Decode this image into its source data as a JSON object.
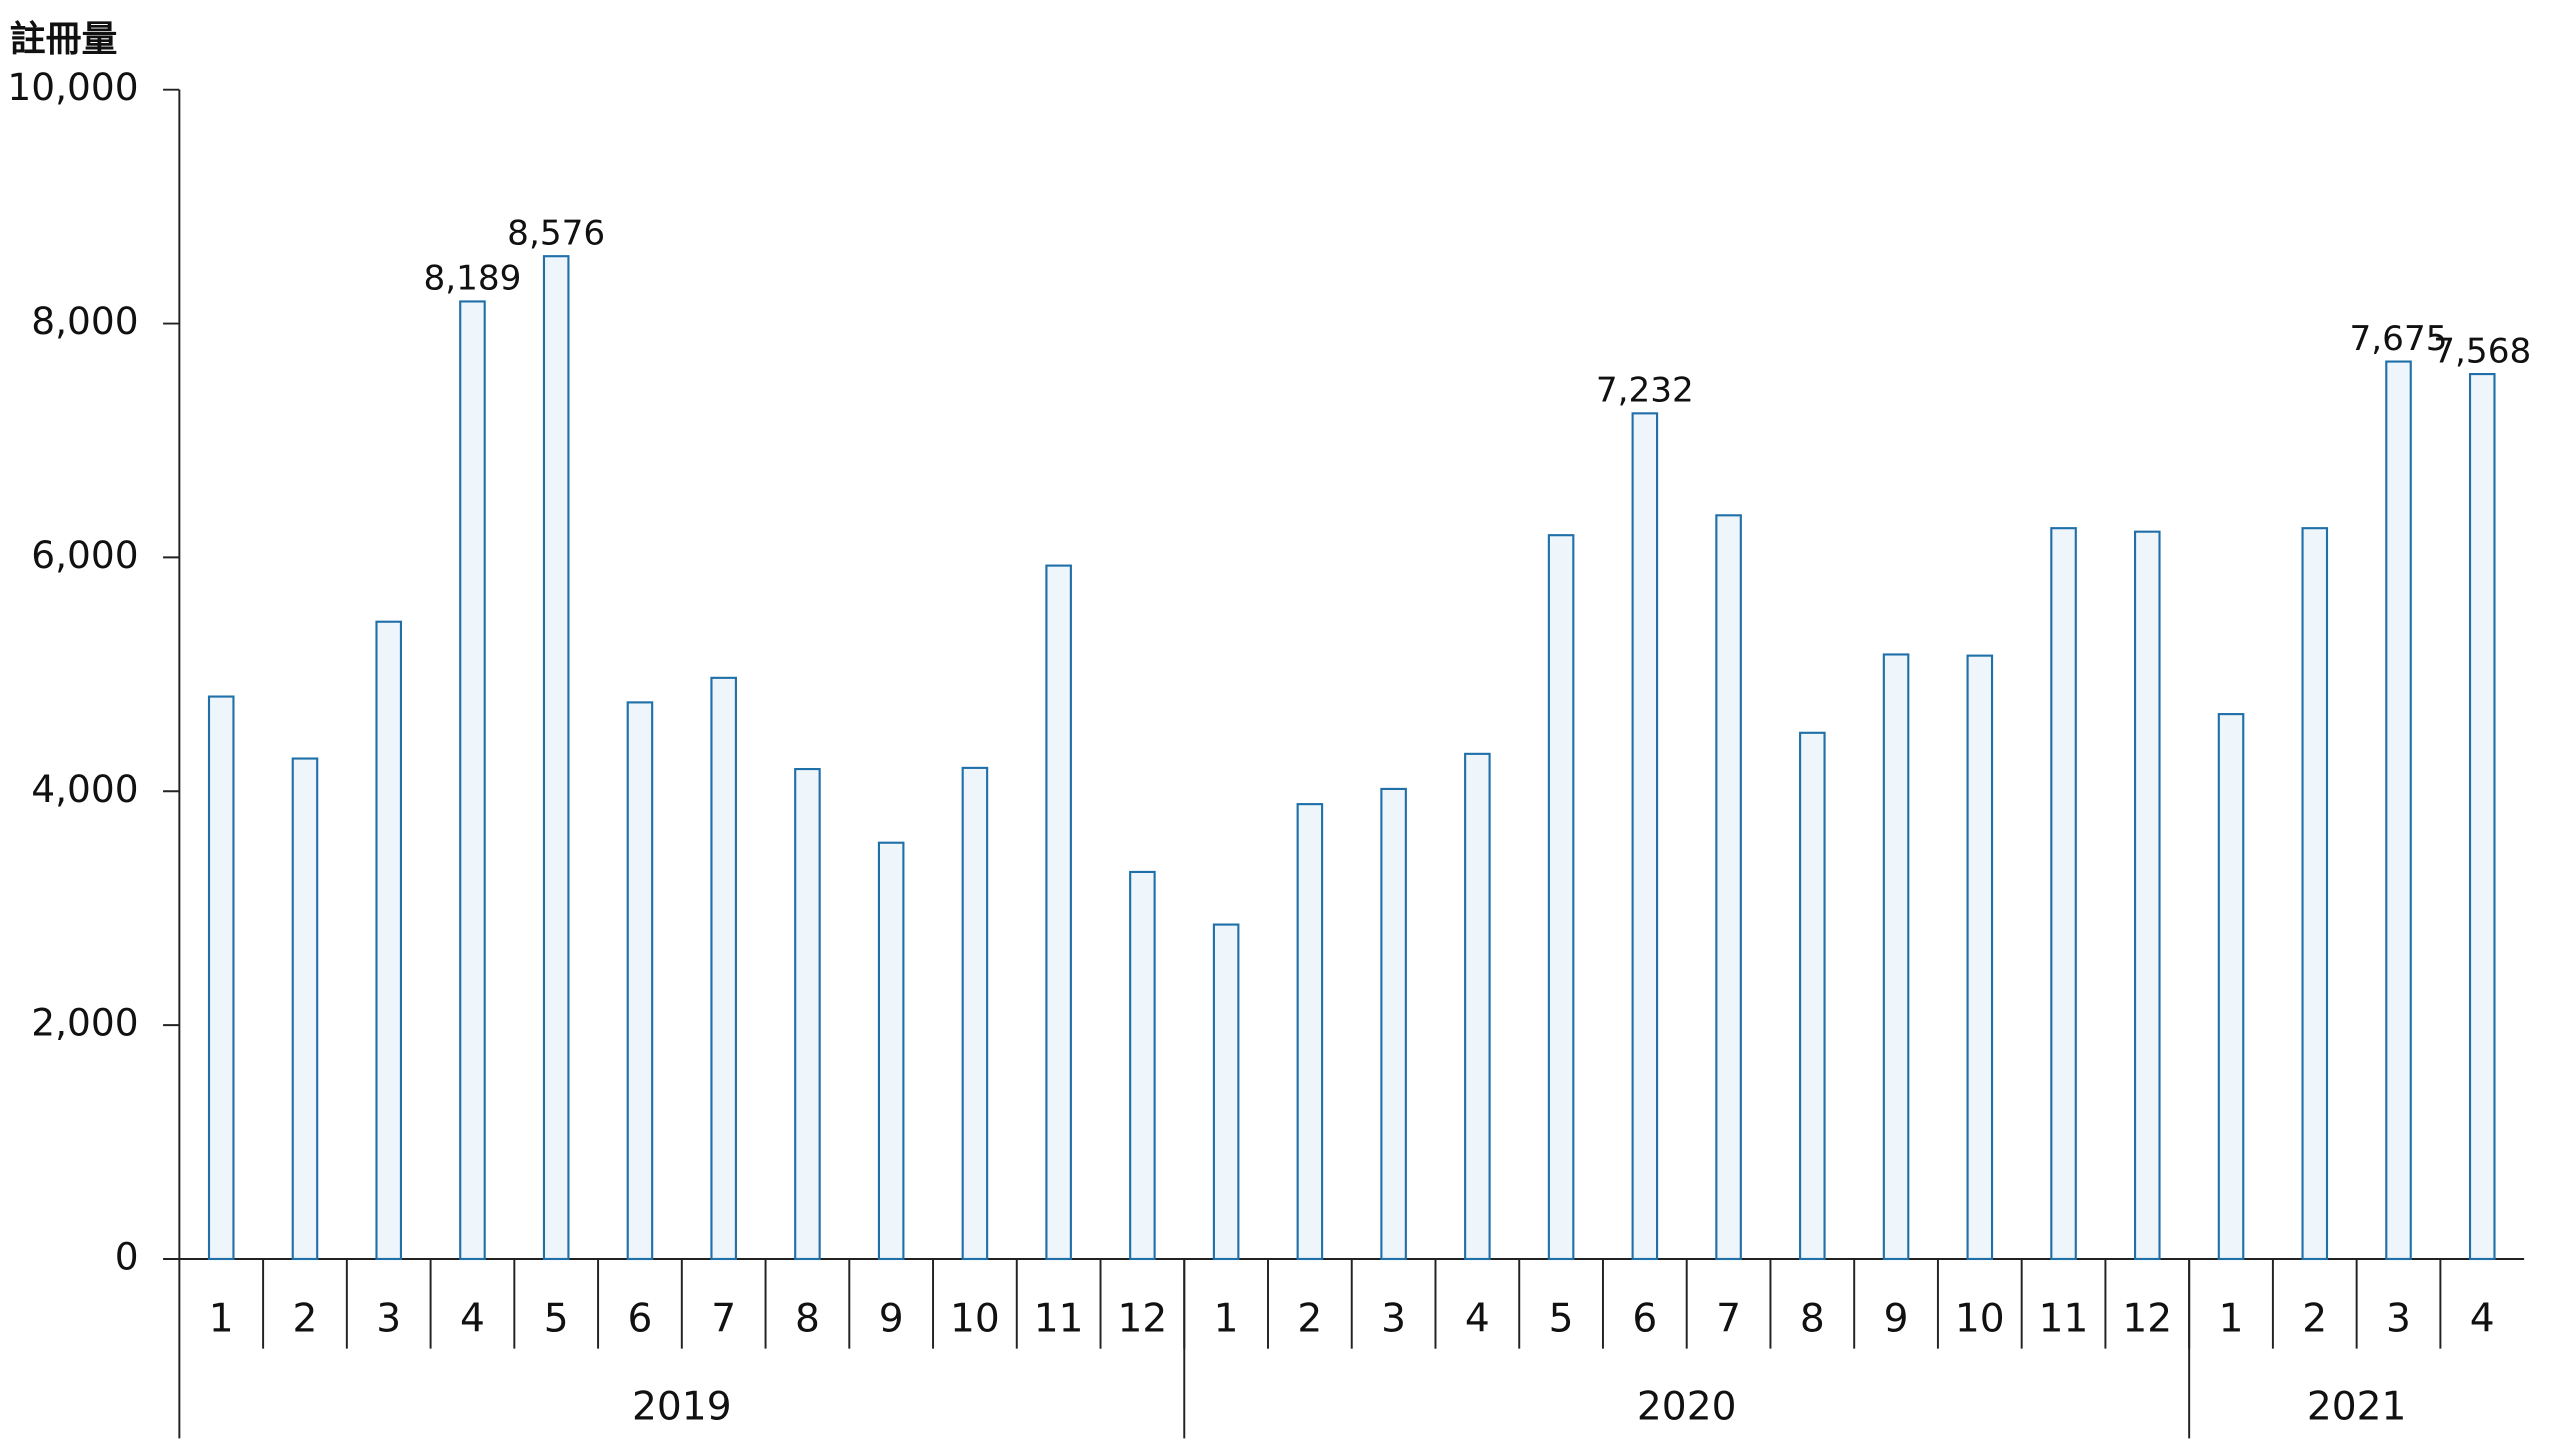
{
  "chart_data": {
    "type": "bar",
    "y_axis_label": "註冊量",
    "groups": [
      {
        "name": "2019",
        "categories": [
          "1",
          "2",
          "3",
          "4",
          "5",
          "6",
          "7",
          "8",
          "9",
          "10",
          "11",
          "12"
        ]
      },
      {
        "name": "2020",
        "categories": [
          "1",
          "2",
          "3",
          "4",
          "5",
          "6",
          "7",
          "8",
          "9",
          "10",
          "11",
          "12"
        ]
      },
      {
        "name": "2021",
        "categories": [
          "1",
          "2",
          "3",
          "4"
        ]
      }
    ],
    "values": [
      4810,
      4280,
      5450,
      8189,
      8576,
      4760,
      4970,
      4190,
      3560,
      4200,
      5930,
      3310,
      2860,
      3890,
      4020,
      4320,
      6190,
      7232,
      6360,
      4500,
      5170,
      5160,
      6250,
      6220,
      4660,
      6250,
      7675,
      7568
    ],
    "value_labels": [
      null,
      null,
      null,
      "8,189",
      "8,576",
      null,
      null,
      null,
      null,
      null,
      null,
      null,
      null,
      null,
      null,
      null,
      null,
      "7,232",
      null,
      null,
      null,
      null,
      null,
      null,
      null,
      null,
      "7,675",
      "7,568"
    ],
    "color": "#eef5fb",
    "edge_color": "#1f6fa8",
    "ylim": [
      0,
      10000
    ],
    "yticks": [
      0,
      {
        "value": 2000,
        "label": "2,000"
      },
      {
        "value": 4000,
        "label": "4,000"
      },
      {
        "value": 6000,
        "label": "6,000"
      },
      {
        "value": 8000,
        "label": "8,000"
      },
      {
        "value": 10000,
        "label": "10,000"
      }
    ],
    "grid": false
  }
}
